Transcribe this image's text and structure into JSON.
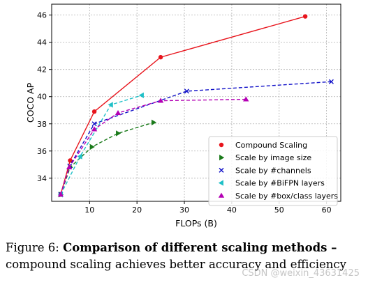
{
  "chart_data": {
    "type": "line",
    "xlabel": "FLOPs (B)",
    "ylabel": "COCO AP",
    "xlim": [
      2,
      63
    ],
    "ylim": [
      32.3,
      46.8
    ],
    "xticks": [
      10,
      20,
      30,
      40,
      50,
      60
    ],
    "yticks": [
      34,
      36,
      38,
      40,
      42,
      44,
      46
    ],
    "grid": true,
    "legend_position": "lower-right",
    "series": [
      {
        "name": "Compound Scaling",
        "color": "#e8141c",
        "marker": "circle",
        "linestyle": "solid",
        "x": [
          3.9,
          5.9,
          11.0,
          25.0,
          55.5
        ],
        "y": [
          32.8,
          35.3,
          38.9,
          42.9,
          45.9
        ]
      },
      {
        "name": "Scale by image size",
        "color": "#1a7a1a",
        "marker": "triangle-right",
        "linestyle": "dashed",
        "x": [
          3.9,
          5.9,
          10.5,
          16.0,
          23.5
        ],
        "y": [
          32.8,
          34.8,
          36.3,
          37.3,
          38.1
        ]
      },
      {
        "name": "Scale by #channels",
        "color": "#1010c8",
        "marker": "x",
        "linestyle": "dashed",
        "x": [
          3.9,
          5.8,
          11.0,
          30.5,
          61.0
        ],
        "y": [
          32.8,
          34.9,
          38.0,
          40.4,
          41.1
        ]
      },
      {
        "name": "Scale by #BiFPN layers",
        "color": "#20c0c8",
        "marker": "triangle-left",
        "linestyle": "dashed",
        "x": [
          3.9,
          8.0,
          14.5,
          21.0
        ],
        "y": [
          32.8,
          35.6,
          39.4,
          40.1
        ]
      },
      {
        "name": "Scale by #box/class layers",
        "color": "#b400b4",
        "marker": "triangle-up",
        "linestyle": "dashed",
        "x": [
          3.9,
          5.7,
          11.0,
          16.0,
          25.0,
          43.0
        ],
        "y": [
          32.8,
          34.8,
          37.6,
          38.8,
          39.7,
          39.8
        ]
      }
    ]
  },
  "caption": {
    "prefix": "Figure 6: ",
    "bold": "Comparison of different scaling methods –",
    "rest": " compound scaling achieves better accuracy and efficiency"
  },
  "watermark": "CSDN @weixin_43631425"
}
